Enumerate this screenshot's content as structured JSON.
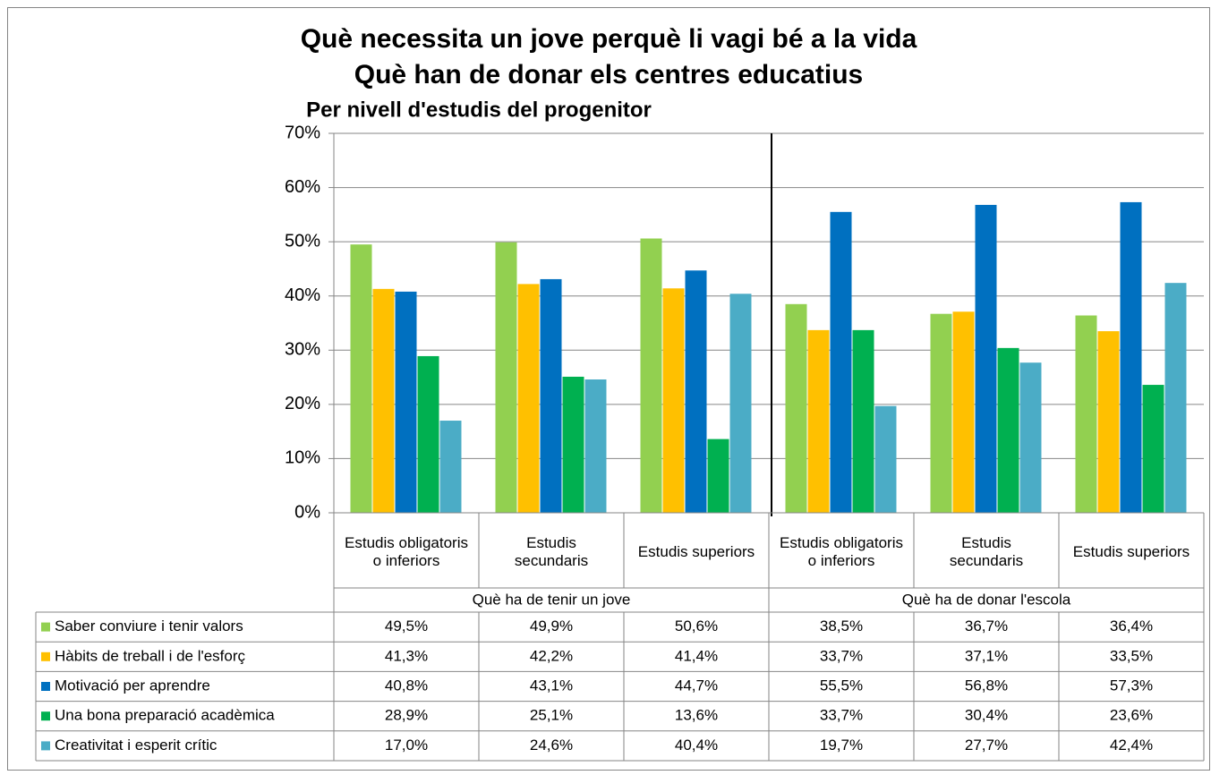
{
  "chart_data": {
    "type": "bar",
    "title": [
      "Què necessita un jove perquè li vagi bé a la vida",
      "Què han de donar els centres educatius"
    ],
    "subtitle": "Per nivell d'estudis del progenitor",
    "category_groups": [
      "Què ha de tenir un jove",
      "Què ha de donar l'escola"
    ],
    "categories": [
      "Estudis obligatoris o inferiors",
      "Estudis secundaris",
      "Estudis superiors",
      "Estudis obligatoris o inferiors",
      "Estudis secundaris",
      "Estudis superiors"
    ],
    "series": [
      {
        "name": "Saber conviure i tenir valors",
        "color": "#92d050",
        "values": [
          49.5,
          49.9,
          50.6,
          38.5,
          36.7,
          36.4
        ],
        "value_labels": [
          "49,5%",
          "49,9%",
          "50,6%",
          "38,5%",
          "36,7%",
          "36,4%"
        ]
      },
      {
        "name": "Hàbits de treball i de l'esforç",
        "color": "#ffc000",
        "values": [
          41.3,
          42.2,
          41.4,
          33.7,
          37.1,
          33.5
        ],
        "value_labels": [
          "41,3%",
          "42,2%",
          "41,4%",
          "33,7%",
          "37,1%",
          "33,5%"
        ]
      },
      {
        "name": "Motivació per aprendre",
        "color": "#0070c0",
        "values": [
          40.8,
          43.1,
          44.7,
          55.5,
          56.8,
          57.3
        ],
        "value_labels": [
          "40,8%",
          "43,1%",
          "44,7%",
          "55,5%",
          "56,8%",
          "57,3%"
        ]
      },
      {
        "name": "Una bona preparació acadèmica",
        "color": "#00b050",
        "values": [
          28.9,
          25.1,
          13.6,
          33.7,
          30.4,
          23.6
        ],
        "value_labels": [
          "28,9%",
          "25,1%",
          "13,6%",
          "33,7%",
          "30,4%",
          "23,6%"
        ]
      },
      {
        "name": "Creativitat i esperit crític",
        "color": "#4bacc6",
        "values": [
          17.0,
          24.6,
          40.4,
          19.7,
          27.7,
          42.4
        ],
        "value_labels": [
          "17,0%",
          "24,6%",
          "40,4%",
          "19,7%",
          "27,7%",
          "42,4%"
        ]
      }
    ],
    "ylim": [
      0,
      70
    ],
    "yticks": [
      {
        "value": 0,
        "label": "0%"
      },
      {
        "value": 10,
        "label": "10%"
      },
      {
        "value": 20,
        "label": "20%"
      },
      {
        "value": 30,
        "label": "30%"
      },
      {
        "value": 40,
        "label": "40%"
      },
      {
        "value": 50,
        "label": "50%"
      },
      {
        "value": 60,
        "label": "60%"
      },
      {
        "value": 70,
        "label": "70%"
      }
    ],
    "grid": true
  }
}
